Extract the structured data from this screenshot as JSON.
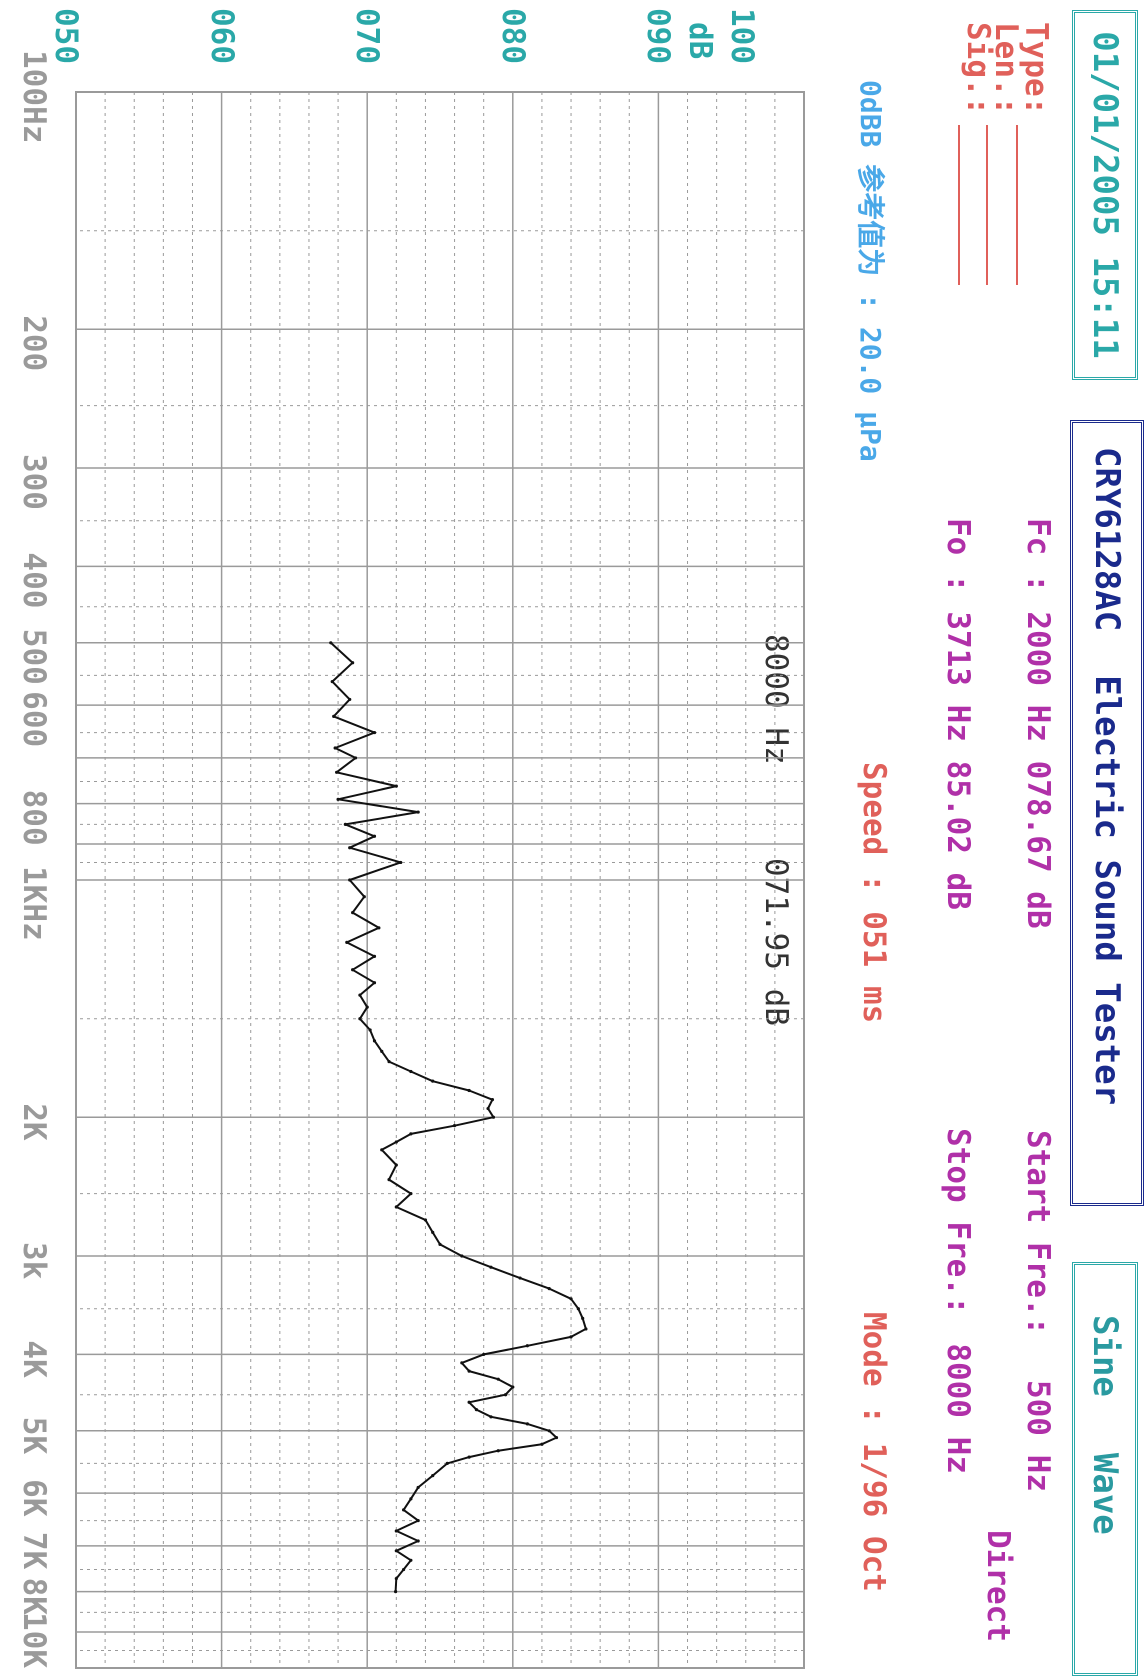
{
  "header": {
    "datetime": "01/01/2005 15:11",
    "model": "CRY6128AC",
    "app_title": "Electric Sound Tester",
    "signal_type": "Sine",
    "signal_word": "Wave"
  },
  "info": {
    "type_label": "Type:",
    "len_label": "Len.:",
    "sig_label": "Sig.:",
    "fc_label": "Fc :",
    "fc_value": "2000 Hz 078.67 dB",
    "fo_label": "Fo :",
    "fo_value": "3713 Hz 85.02 dB",
    "start_label": "Start Fre.:",
    "start_value": "500 Hz",
    "stop_label": "Stop Fre.:",
    "stop_value": "8000 Hz",
    "direct_label": "Direct",
    "ref_text": "0dBB 参考值为 : 20.0 μPa",
    "speed_text": "Speed : 051 ms",
    "mode_text": "Mode : 1/96 Oct",
    "cursor_freq": "8000 Hz",
    "cursor_level": "071.95 dB"
  },
  "colors": {
    "grid": "#9a9a9a",
    "curve": "#111111",
    "accent_teal": "#2aa8a8",
    "accent_navy": "#1a2a8c",
    "label_red": "#e0605a",
    "label_magenta": "#b030a8"
  },
  "chart_data": {
    "type": "line",
    "title": "Electric Sound Tester",
    "xlabel": "",
    "ylabel": "dB",
    "x_scale": "log",
    "xlim": [
      100,
      10000
    ],
    "ylim": [
      50,
      100
    ],
    "grid": true,
    "y_ticks": [
      "100",
      "090",
      "080",
      "070",
      "060",
      "050"
    ],
    "y_unit_label": "dB",
    "x_ticks": [
      "100Hz",
      "200",
      "300",
      "400",
      "500",
      "600",
      "800",
      "1KHz",
      "2K",
      "3k",
      "4K",
      "5K",
      "6K",
      "7K",
      "8K",
      "10K"
    ],
    "series": [
      {
        "x": [
          500,
          530,
          560,
          590,
          620,
          650,
          680,
          700,
          730,
          760,
          790,
          820,
          850,
          880,
          910,
          950,
          1000,
          1050,
          1100,
          1150,
          1200,
          1250,
          1300,
          1350,
          1400,
          1450,
          1500,
          1550,
          1600,
          1650,
          1700,
          1750,
          1800,
          1850,
          1900,
          1950,
          2000,
          2050,
          2100,
          2150,
          2200,
          2300,
          2400,
          2500,
          2600,
          2700,
          2800,
          2900,
          3000,
          3100,
          3200,
          3300,
          3400,
          3500,
          3600,
          3713,
          3800,
          3900,
          4000,
          4100,
          4200,
          4300,
          4400,
          4500,
          4600,
          4700,
          4800,
          4900,
          5000,
          5100,
          5200,
          5300,
          5400,
          5500,
          5700,
          5900,
          6100,
          6300,
          6500,
          6700,
          6900,
          7100,
          7300,
          7500,
          7700,
          8000
        ],
        "y": [
          67.5,
          69.0,
          67.6,
          68.8,
          67.7,
          70.5,
          67.8,
          69.2,
          67.9,
          72.0,
          68.0,
          73.5,
          68.5,
          70.5,
          68.8,
          72.3,
          68.8,
          69.8,
          69.0,
          70.8,
          68.6,
          70.5,
          69.0,
          70.5,
          69.5,
          70.0,
          69.5,
          70.2,
          70.5,
          71.0,
          71.5,
          73.0,
          74.5,
          77.0,
          78.6,
          78.3,
          78.67,
          76.0,
          73.0,
          72.0,
          71.0,
          72.0,
          71.5,
          73.0,
          72.0,
          74.0,
          74.5,
          75.0,
          76.5,
          78.5,
          80.5,
          82.5,
          84.0,
          84.5,
          84.8,
          85.02,
          84.0,
          81.0,
          78.0,
          76.5,
          77.0,
          79.0,
          80.0,
          79.5,
          77.0,
          77.5,
          78.5,
          81.0,
          82.5,
          83.0,
          82.0,
          79.0,
          77.0,
          75.5,
          74.5,
          73.5,
          73.0,
          72.5,
          73.5,
          72.0,
          73.5,
          72.0,
          73.0,
          72.5,
          72.0,
          71.95
        ]
      }
    ]
  }
}
